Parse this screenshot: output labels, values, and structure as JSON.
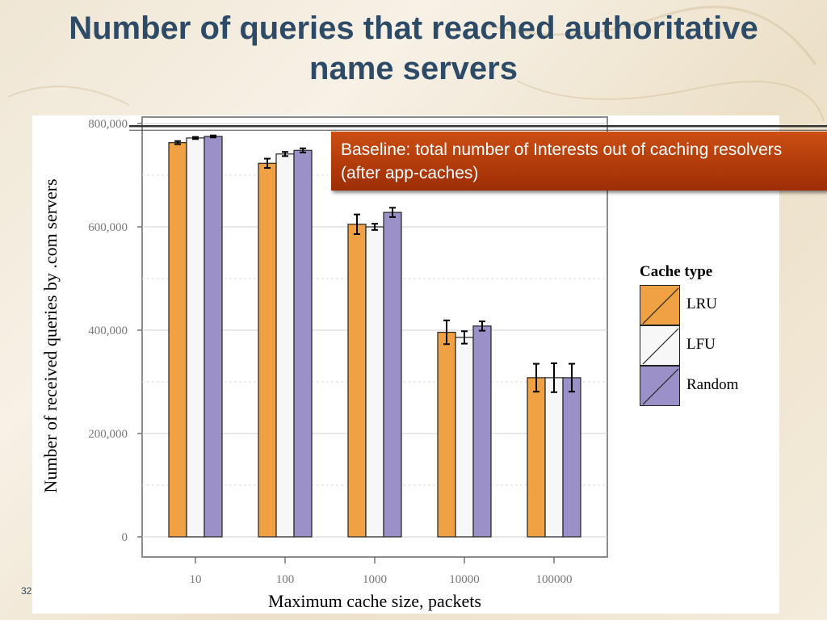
{
  "slide": {
    "title_lines": [
      "Number of queries that reached authoritative",
      "name servers"
    ],
    "slide_number": "32",
    "callout_text": "Baseline: total number of Interests out of caching resolvers (after app-caches)"
  },
  "colors": {
    "title": "#2d4a66",
    "callout": "#b03c0c",
    "LRU": "#f0a143",
    "LFU": "#f7f7f7",
    "Random": "#9b91c8"
  },
  "chart_data": {
    "type": "bar",
    "title": "",
    "xlabel": "Maximum cache size, packets",
    "ylabel": "Number of received queries by .com servers",
    "categories": [
      "10",
      "100",
      "1000",
      "10000",
      "100000"
    ],
    "ylim": [
      0,
      820000
    ],
    "yticks": [
      0,
      200000,
      400000,
      600000,
      800000
    ],
    "ytick_labels": [
      "0",
      "200,000",
      "400,000",
      "600,000",
      "800,000"
    ],
    "baseline": 795000,
    "grid": true,
    "legend": {
      "title": "Cache type",
      "position": "right"
    },
    "series": [
      {
        "name": "LRU",
        "values": [
          763000,
          723000,
          605000,
          396000,
          308000
        ],
        "errors": [
          3000,
          9000,
          19000,
          23000,
          27000
        ]
      },
      {
        "name": "LFU",
        "values": [
          772000,
          741000,
          600000,
          386000,
          308000
        ],
        "errors": [
          2000,
          4000,
          6000,
          12000,
          28000
        ]
      },
      {
        "name": "Random",
        "values": [
          775000,
          748000,
          628000,
          408000,
          308000
        ],
        "errors": [
          2000,
          4000,
          9000,
          9000,
          27000
        ]
      }
    ]
  }
}
